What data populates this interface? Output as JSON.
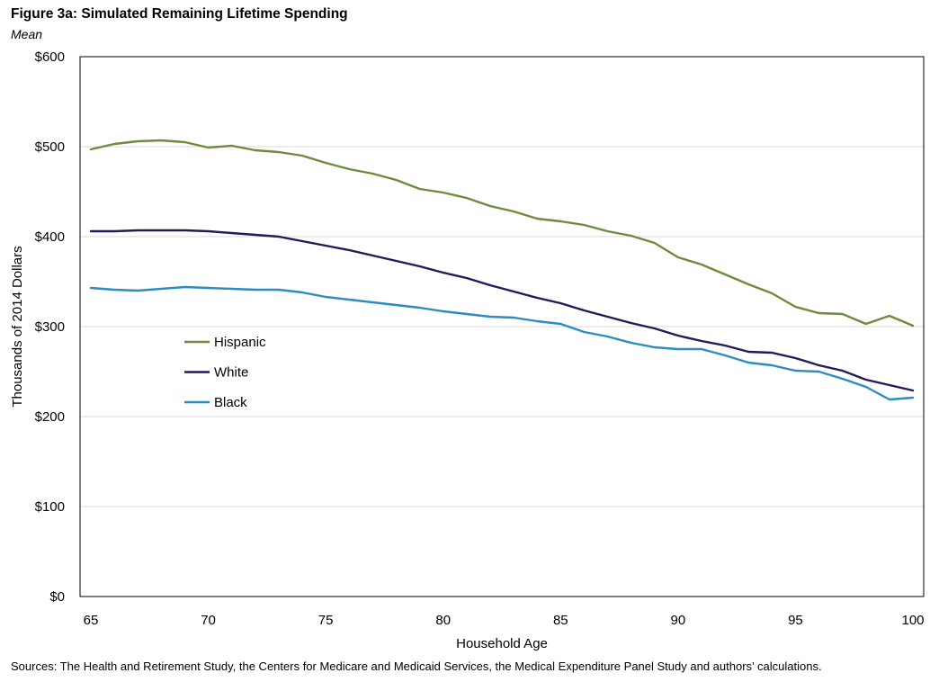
{
  "figure": {
    "title": "Figure 3a: Simulated Remaining Lifetime Spending",
    "subtitle": "Mean",
    "source": "Sources: The Health and Retirement Study, the Centers for Medicare and Medicaid Services, the Medical Expenditure Panel Study and authors’ calculations."
  },
  "chart_data": {
    "type": "line",
    "title": "Figure 3a: Simulated Remaining Lifetime Spending",
    "subtitle": "Mean",
    "xlabel": "Household Age",
    "ylabel": "Thousands of 2014 Dollars",
    "xlim": [
      65,
      100
    ],
    "ylim": [
      0,
      600
    ],
    "xticks": [
      65,
      70,
      75,
      80,
      85,
      90,
      95,
      100
    ],
    "xtick_labels": [
      "65",
      "70",
      "75",
      "80",
      "85",
      "90",
      "95",
      "100"
    ],
    "yticks": [
      0,
      100,
      200,
      300,
      400,
      500,
      600
    ],
    "ytick_labels": [
      "$0",
      "$100",
      "$200",
      "$300",
      "$400",
      "$500",
      "$600"
    ],
    "grid": "horizontal",
    "legend_position": "middle-left",
    "x": [
      65,
      66,
      67,
      68,
      69,
      70,
      71,
      72,
      73,
      74,
      75,
      76,
      77,
      78,
      79,
      80,
      81,
      82,
      83,
      84,
      85,
      86,
      87,
      88,
      89,
      90,
      91,
      92,
      93,
      94,
      95,
      96,
      97,
      98,
      99,
      100
    ],
    "series": [
      {
        "name": "Hispanic",
        "color": "#6e8b3d",
        "values": [
          497,
          503,
          506,
          507,
          505,
          499,
          501,
          496,
          494,
          490,
          482,
          475,
          470,
          463,
          453,
          449,
          443,
          434,
          428,
          420,
          417,
          413,
          406,
          401,
          393,
          377,
          369,
          358,
          347,
          337,
          322,
          315,
          314,
          303,
          312,
          301
        ]
      },
      {
        "name": "White",
        "color": "#231a57",
        "values": [
          406,
          406,
          407,
          407,
          407,
          406,
          404,
          402,
          400,
          395,
          390,
          385,
          379,
          373,
          367,
          360,
          354,
          346,
          339,
          332,
          326,
          318,
          311,
          304,
          298,
          290,
          284,
          279,
          272,
          271,
          265,
          257,
          251,
          241,
          235,
          229
        ]
      },
      {
        "name": "Black",
        "color": "#2b8cbf",
        "values": [
          343,
          341,
          340,
          342,
          344,
          343,
          342,
          341,
          341,
          338,
          333,
          330,
          327,
          324,
          321,
          317,
          314,
          311,
          310,
          306,
          303,
          294,
          289,
          282,
          277,
          275,
          275,
          268,
          260,
          257,
          251,
          250,
          242,
          233,
          219,
          221
        ]
      }
    ]
  }
}
